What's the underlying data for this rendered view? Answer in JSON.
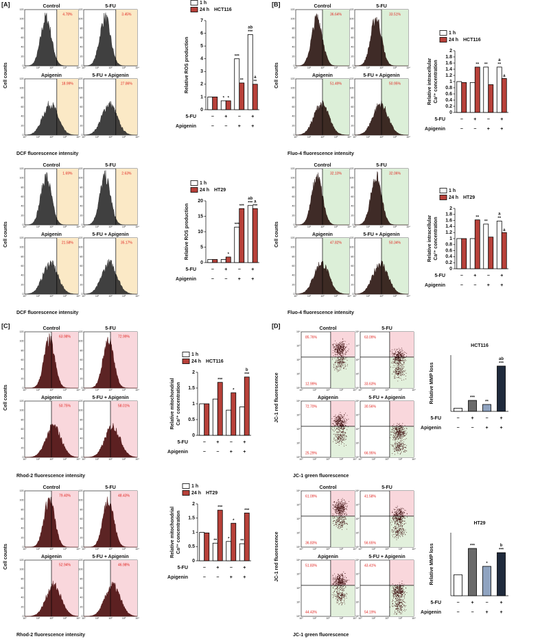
{
  "panel_labels": [
    "[A]",
    "[B]",
    "[C]",
    "[D]"
  ],
  "flow_panels": [
    {
      "type": "histogram",
      "titles": [
        "Control",
        "5-FU",
        "Apigenin",
        "5-FU + Apigenin"
      ],
      "percents": [
        "4.78%",
        "3.45%",
        "18.99%",
        "27.86%"
      ],
      "xlabel": "DCF fluorescence intensity",
      "ylabel": "Cell counts",
      "yticks": [
        0,
        20,
        40,
        60,
        80,
        100,
        120
      ],
      "xtick_labels": [
        "10⁰",
        "10¹",
        "10²",
        "10³",
        "10⁴"
      ],
      "color": "#2b2b2b",
      "gate_color": "#fbe9c6"
    },
    {
      "type": "histogram",
      "titles": [
        "Control",
        "5-FU",
        "Apigenin",
        "5-FU + Apigenin"
      ],
      "percents": [
        "1.69%",
        "2.63%",
        "21.58%",
        "35.17%"
      ],
      "xlabel": "DCF fluorescence intensity",
      "ylabel": "Cell counts",
      "yticks": [
        0,
        20,
        40,
        60,
        80,
        100,
        120
      ],
      "xtick_labels": [
        "10⁰",
        "10¹",
        "10²",
        "10³",
        "10⁴"
      ],
      "color": "#2b2b2b",
      "gate_color": "#fbe9c6"
    },
    {
      "type": "histogram",
      "titles": [
        "Control",
        "5-FU",
        "Apigenin",
        "5-FU + Apigenin"
      ],
      "percents": [
        "36.64%",
        "33.51%",
        "51.49%",
        "50.95%"
      ],
      "xlabel": "Fluo-4 fluorescence intensity",
      "ylabel": "Cell counts",
      "yticks": [
        0,
        20,
        40,
        60,
        80,
        100,
        120
      ],
      "xtick_labels": [
        "10⁰",
        "10¹",
        "10²",
        "10³",
        "10⁴"
      ],
      "color": "#2a1410",
      "gate_color": "#dcefd8"
    },
    {
      "type": "histogram",
      "titles": [
        "Control",
        "5-FU",
        "Apigenin",
        "5-FU + Apigenin"
      ],
      "percents": [
        "32.10%",
        "32.06%",
        "47.82%",
        "50.34%"
      ],
      "xlabel": "Fluo-4 fluorescence intensity",
      "ylabel": "Cell counts",
      "yticks": [
        0,
        20,
        40,
        60,
        80,
        100,
        120
      ],
      "xtick_labels": [
        "10⁰",
        "10¹",
        "10²",
        "10³",
        "10⁴"
      ],
      "color": "#2a1410",
      "gate_color": "#dcefd8"
    },
    {
      "type": "histogram",
      "titles": [
        "Control",
        "5-FU",
        "Apigenin",
        "5-FU + Apigenin"
      ],
      "percents": [
        "63.98%",
        "72.99%",
        "50.75%",
        "58.01%"
      ],
      "xlabel": "Rhod-2 fluorescence intensity",
      "ylabel": "Cell counts",
      "yticks": [
        0,
        20,
        40,
        60,
        80,
        100,
        120
      ],
      "xtick_labels": [
        "10⁰",
        "10¹",
        "10²",
        "10³",
        "10⁴"
      ],
      "color": "#4a0c0c",
      "gate_color": "#f9d7dc"
    },
    {
      "type": "histogram",
      "titles": [
        "Control",
        "5-FU",
        "Apigenin",
        "5-FU + Apigenin"
      ],
      "percents": [
        "79.40%",
        "48.43%",
        "52.94%",
        "46.98%"
      ],
      "xlabel": "Rhod-2 fluorescence intensity",
      "ylabel": "Cell counts",
      "yticks": [
        0,
        20,
        40,
        60,
        80,
        100,
        120
      ],
      "xtick_labels": [
        "10⁰",
        "10¹",
        "10²",
        "10³",
        "10⁴"
      ],
      "color": "#4a0c0c",
      "gate_color": "#f9d7dc"
    },
    {
      "type": "scatter",
      "titles": [
        "Control",
        "5-FU",
        "Apigenin",
        "5-FU + Apigenin"
      ],
      "percents_upper": [
        "85.76%",
        "63.09%",
        "72.70%",
        "30.56%"
      ],
      "percents_lower": [
        "12.99%",
        "33.63%",
        "25.29%",
        "66.95%"
      ],
      "xlabel": "JC-1 green fluorescence",
      "ylabel": "JC-1 red fluorescence",
      "ytick_labels": [
        "10⁰",
        "10¹",
        "10²",
        "10³",
        "10⁴"
      ],
      "xtick_labels": [
        "10⁰",
        "10¹",
        "10²",
        "10³",
        "10⁴"
      ],
      "color": "#3a0a0a",
      "gate_color": "#f9d7dc",
      "lower_gate_color": "#e2f0dc"
    },
    {
      "type": "scatter",
      "titles": [
        "Control",
        "5-FU",
        "Apigenin",
        "5-FU + Apigenin"
      ],
      "percents_upper": [
        "61.09%",
        "41.58%",
        "51.83%",
        "43.41%"
      ],
      "percents_lower": [
        "36.83%",
        "56.65%",
        "44.43%",
        "54.19%"
      ],
      "xlabel": "JC-1 green fluorescence",
      "ylabel": "JC-1 red fluorescence",
      "ytick_labels": [
        "10⁰",
        "10¹",
        "10²",
        "10³",
        "10⁴"
      ],
      "xtick_labels": [
        "10⁰",
        "10¹",
        "10²",
        "10³",
        "10⁴"
      ],
      "color": "#3a0a0a",
      "gate_color": "#f9d7dc",
      "lower_gate_color": "#e2f0dc"
    }
  ],
  "chart_data": [
    {
      "type": "bar",
      "title": "HCT116",
      "ylabel": [
        "Relative ROS production"
      ],
      "ylim": [
        0,
        7
      ],
      "yticks": [
        0,
        1,
        2,
        3,
        4,
        5,
        6,
        7
      ],
      "series": [
        {
          "name": "1 h",
          "color": "#ffffff",
          "values": [
            1,
            0.7,
            4,
            5.9
          ],
          "significance": [
            null,
            "*",
            "***",
            [
              "ab",
              "***"
            ]
          ]
        },
        {
          "name": "24 h",
          "color": "#b8413a",
          "values": [
            1,
            0.7,
            2.1,
            2.0
          ],
          "significance": [
            null,
            "*",
            "**",
            [
              "a",
              "**"
            ]
          ]
        }
      ],
      "rows": [
        {
          "name": "5-FU",
          "marks": [
            "−",
            "+",
            "−",
            "+"
          ]
        },
        {
          "name": "Apigenin",
          "marks": [
            "−",
            "−",
            "+",
            "+"
          ]
        }
      ]
    },
    {
      "type": "bar",
      "title": "HT29",
      "ylabel": [
        "Relative ROS production"
      ],
      "ylim": [
        0,
        20
      ],
      "yticks": [
        0,
        5,
        10,
        15,
        20
      ],
      "series": [
        {
          "name": "1 h",
          "color": "#ffffff",
          "values": [
            1,
            1,
            11.5,
            18.5
          ],
          "significance": [
            null,
            null,
            "***",
            [
              "ab",
              "***"
            ]
          ]
        },
        {
          "name": "24 h",
          "color": "#b8413a",
          "values": [
            1,
            1.8,
            17.5,
            17.5
          ],
          "significance": [
            null,
            "*",
            "***",
            [
              "a",
              "***"
            ]
          ]
        }
      ],
      "rows": [
        {
          "name": "5-FU",
          "marks": [
            "−",
            "+",
            "−",
            "+"
          ]
        },
        {
          "name": "Apigenin",
          "marks": [
            "−",
            "−",
            "+",
            "+"
          ]
        }
      ]
    },
    {
      "type": "bar",
      "title": "HCT116",
      "ylabel": [
        "Relative intracellular",
        "Ca²⁺ concentration"
      ],
      "ylim": [
        0,
        2
      ],
      "yticks": [
        0,
        0.2,
        0.4,
        0.6,
        0.8,
        1,
        1.2,
        1.4,
        1.6,
        1.8,
        2
      ],
      "series": [
        {
          "name": "1 h",
          "color": "#ffffff",
          "values": [
            1,
            0.97,
            1.47,
            1.47
          ],
          "significance": [
            null,
            null,
            "**",
            [
              "a",
              "**"
            ]
          ]
        },
        {
          "name": "24 h",
          "color": "#b8413a",
          "values": [
            0.97,
            1.47,
            0.9,
            1.1
          ],
          "significance": [
            null,
            "**",
            null,
            "a"
          ]
        }
      ],
      "rows": [
        {
          "name": "5-FU",
          "marks": [
            "−",
            "+",
            "−",
            "+"
          ]
        },
        {
          "name": "Apigenin",
          "marks": [
            "−",
            "−",
            "+",
            "+"
          ]
        }
      ]
    },
    {
      "type": "bar",
      "title": "HT29",
      "ylabel": [
        "Relative intracellular",
        "Ca²⁺ concentration"
      ],
      "ylim": [
        0,
        2
      ],
      "yticks": [
        0,
        0.2,
        0.4,
        0.6,
        0.8,
        1,
        1.2,
        1.4,
        1.6,
        1.8,
        2
      ],
      "series": [
        {
          "name": "1 h",
          "color": "#ffffff",
          "values": [
            1,
            1,
            1.48,
            1.58
          ],
          "significance": [
            null,
            null,
            "**",
            [
              "a",
              "**"
            ]
          ]
        },
        {
          "name": "24 h",
          "color": "#b8413a",
          "values": [
            1,
            1.62,
            1.05,
            1.2
          ],
          "significance": [
            null,
            "**",
            null,
            "a"
          ]
        }
      ],
      "rows": [
        {
          "name": "5-FU",
          "marks": [
            "−",
            "+",
            "−",
            "+"
          ]
        },
        {
          "name": "Apigenin",
          "marks": [
            "−",
            "−",
            "+",
            "+"
          ]
        }
      ]
    },
    {
      "type": "bar",
      "title": "HCT116",
      "ylabel": [
        "Relative mitochondrial",
        "Ca²⁺ concentration"
      ],
      "ylim": [
        0,
        2
      ],
      "yticks": [
        0,
        0.5,
        1,
        1.5,
        2
      ],
      "series": [
        {
          "name": "1 h",
          "color": "#ffffff",
          "values": [
            1,
            1.15,
            0.8,
            0.9
          ],
          "significance": [
            null,
            null,
            null,
            null
          ]
        },
        {
          "name": "24 h",
          "color": "#b8413a",
          "values": [
            1,
            1.68,
            1.35,
            1.85
          ],
          "significance": [
            null,
            "***",
            "*",
            [
              "b",
              "***"
            ]
          ]
        }
      ],
      "rows": [
        {
          "name": "5-FU",
          "marks": [
            "−",
            "+",
            "−",
            "+"
          ]
        },
        {
          "name": "Apigenin",
          "marks": [
            "−",
            "−",
            "+",
            "+"
          ]
        }
      ]
    },
    {
      "type": "bar",
      "title": "HT29",
      "ylabel": [
        "Relative mitochondrial",
        "Ca²⁺ concentration"
      ],
      "ylim": [
        0,
        2
      ],
      "yticks": [
        0,
        0.5,
        1,
        1.5,
        2
      ],
      "series": [
        {
          "name": "1 h",
          "color": "#ffffff",
          "values": [
            1,
            0.62,
            0.68,
            0.6
          ],
          "significance": [
            null,
            "**",
            "*",
            "**"
          ]
        },
        {
          "name": "24 h",
          "color": "#b8413a",
          "values": [
            0.98,
            1.78,
            1.32,
            1.68
          ],
          "significance": [
            null,
            "***",
            "*",
            "***"
          ]
        }
      ],
      "rows": [
        {
          "name": "5-FU",
          "marks": [
            "−",
            "+",
            "−",
            "+"
          ]
        },
        {
          "name": "Apigenin",
          "marks": [
            "−",
            "−",
            "+",
            "+"
          ]
        }
      ]
    },
    {
      "type": "bar",
      "title": "HCT116",
      "ylabel": [
        "Relative MMP loss"
      ],
      "ylim": [
        0,
        18
      ],
      "series": [
        {
          "colors": [
            "#ffffff",
            "#6b6b6b",
            "#8fa3c0",
            "#1f2a3c"
          ],
          "values": [
            1,
            3.5,
            2.2,
            14.5
          ],
          "significance": [
            null,
            "***",
            "**",
            [
              "ab",
              "***"
            ]
          ]
        }
      ],
      "rows": [
        {
          "name": "5-FU",
          "marks": [
            "−",
            "+",
            "−",
            "+"
          ]
        },
        {
          "name": "Apigenin",
          "marks": [
            "−",
            "−",
            "+",
            "+"
          ]
        }
      ]
    },
    {
      "type": "bar",
      "title": "HT29",
      "ylabel": [
        "Relative MMP loss"
      ],
      "ylim": [
        0,
        3
      ],
      "series": [
        {
          "colors": [
            "#ffffff",
            "#6b6b6b",
            "#8fa3c0",
            "#1f2a3c"
          ],
          "values": [
            1,
            2.25,
            1.4,
            2.05
          ],
          "significance": [
            null,
            "***",
            "*",
            [
              "b",
              "***"
            ]
          ]
        }
      ],
      "rows": [
        {
          "name": "5-FU",
          "marks": [
            "−",
            "+",
            "−",
            "+"
          ]
        },
        {
          "name": "Apigenin",
          "marks": [
            "−",
            "−",
            "+",
            "+"
          ]
        }
      ]
    }
  ]
}
